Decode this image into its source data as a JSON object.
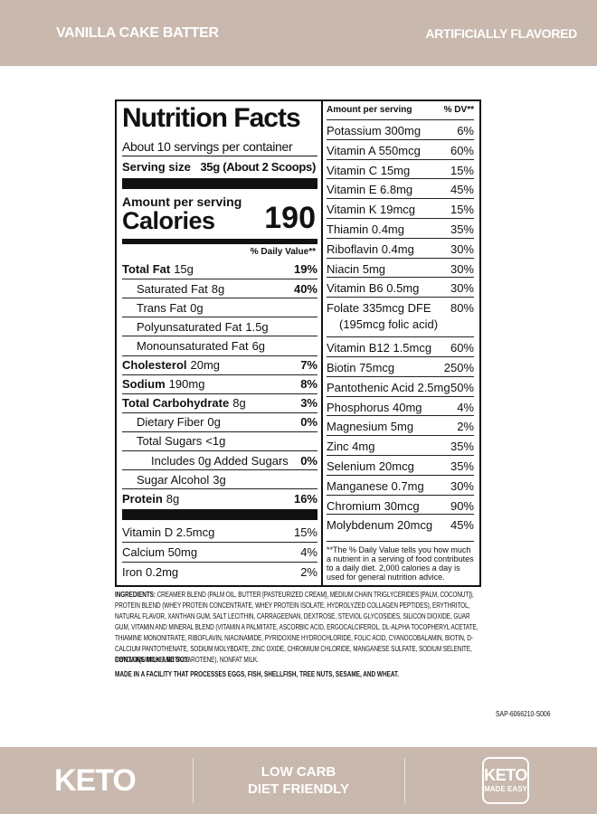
{
  "header": {
    "product_name": "VANILLA CAKE BATTER",
    "flavor_note": "ARTIFICIALLY FLAVORED"
  },
  "nutrition_facts": {
    "title": "Nutrition Facts",
    "servings": "About 10 servings per container",
    "serving_size_label": "Serving size",
    "serving_size_value": "35g (About 2 Scoops)",
    "amount_per_serving": "Amount per serving",
    "calories_label": "Calories",
    "calories_value": "190",
    "dv_header": "% Daily Value**",
    "nutrients": [
      {
        "name": "Total Fat",
        "amount": "15g",
        "dv": "19%",
        "level": 0
      },
      {
        "name": "Saturated Fat",
        "amount": "8g",
        "dv": "40%",
        "level": 1
      },
      {
        "name": "Trans Fat",
        "amount": "0g",
        "level": 1
      },
      {
        "name": "Polyunsaturated Fat",
        "amount": "1.5g",
        "level": 1
      },
      {
        "name": "Monounsaturated Fat",
        "amount": "6g",
        "level": 1
      },
      {
        "name": "Cholesterol",
        "amount": "20mg",
        "dv": "7%",
        "level": 0
      },
      {
        "name": "Sodium",
        "amount": "190mg",
        "dv": "8%",
        "level": 0
      },
      {
        "name": "Total Carbohydrate",
        "amount": "8g",
        "dv": "3%",
        "level": 0
      },
      {
        "name": "Dietary Fiber",
        "amount": "0g",
        "dv": "0%",
        "level": 1
      },
      {
        "name": "Total Sugars",
        "amount": "<1g",
        "level": 1
      },
      {
        "name": "Includes 0g Added Sugars",
        "dv": "0%",
        "level": 2
      },
      {
        "name": "Sugar Alcohol",
        "amount": "3g",
        "level": 1
      },
      {
        "name": "Protein",
        "amount": "8g",
        "dv": "16%",
        "level": 0
      }
    ],
    "vitamins": [
      {
        "name": "Vitamin D 2.5mcg",
        "dv": "15%"
      },
      {
        "name": "Calcium 50mg",
        "dv": "4%"
      },
      {
        "name": "Iron 0.2mg",
        "dv": "2%"
      }
    ],
    "right_header": {
      "amount": "Amount per serving",
      "dv": "% DV**"
    },
    "right_rows": [
      {
        "name": "Potassium 300mg",
        "dv": "6%"
      },
      {
        "name": "Vitamin A 550mcg",
        "dv": "60%"
      },
      {
        "name": "Vitamin C 15mg",
        "dv": "15%"
      },
      {
        "name": "Vitamin E 6.8mg",
        "dv": "45%"
      },
      {
        "name": "Vitamin K 19mcg",
        "dv": "15%"
      },
      {
        "name": "Thiamin 0.4mg",
        "dv": "35%"
      },
      {
        "name": "Riboflavin 0.4mg",
        "dv": "30%"
      },
      {
        "name": "Niacin 5mg",
        "dv": "30%"
      },
      {
        "name": "Vitamin B6 0.5mg",
        "dv": "30%"
      },
      {
        "name": "Folate 335mcg DFE",
        "sub": "(195mcg folic acid)",
        "dv": "80%"
      },
      {
        "name": "Vitamin B12 1.5mcg",
        "dv": "60%"
      },
      {
        "name": "Biotin 75mcg",
        "dv": "250%"
      },
      {
        "name": "Pantothenic Acid 2.5mg",
        "dv": "50%"
      },
      {
        "name": "Phosphorus 40mg",
        "dv": "4%"
      },
      {
        "name": "Magnesium 5mg",
        "dv": "2%"
      },
      {
        "name": "Zinc 4mg",
        "dv": "35%"
      },
      {
        "name": "Selenium 20mcg",
        "dv": "35%"
      },
      {
        "name": "Manganese 0.7mg",
        "dv": "30%"
      },
      {
        "name": "Chromium 30mcg",
        "dv": "90%"
      },
      {
        "name": "Molybdenum 20mcg",
        "dv": "45%"
      }
    ],
    "footnote": "**The % Daily Value tells you how much a nutrient in a serving of food contributes to a daily diet. 2,000 calories a day is used for general nutrition advice."
  },
  "ingredients": {
    "label": "INGREDIENTS:",
    "text": "CREAMER BLEND (PALM OIL, BUTTER [PASTEURIZED CREAM], MEDIUM CHAIN TRIGLYCERIDES [PALM, COCONUT]), PROTEIN BLEND (WHEY PROTEIN CONCENTRATE, WHEY PROTEIN ISOLATE, HYDROLYZED COLLAGEN PEPTIDES), ERYTHRITOL, NATURAL FLAVOR, XANTHAN GUM, SALT LECITHIN, CARRAGEENAN, DEXTROSE, STEVIOL GLYCOSIDES, SILICON DIOXIDE, GUAR GUM, VITAMIN AND MINERAL BLEND (VITAMIN A PALMITATE, ASCORBIC ACID, ERGOCALCIFEROL, DL-ALPHA TOCOPHERYL ACETATE, THIAMINE MONONITRATE, RIBOFLAVIN, NIACINAMIDE, PYRIDOXINE HYDROCHLORIDE, FOLIC ACID, CYANOCOBALAMIN, BIOTIN, D-CALCIUM PANTOTHENATE, SODIUM MOLYBDATE, ZINC OXIDE, CHROMIUM CHLORIDE, MANGANESE SULFATE, SODIUM SELENITE, PHYLLOQUINONE, BETA-CAROTENE), NONFAT MILK.",
    "contains": "CONTAINS MILK AND SOY.",
    "facility": "MADE IN A FACILITY THAT PROCESSES EGGS, FISH, SHELLFISH, TREE NUTS, SESAME, AND WHEAT."
  },
  "code": "SAP-6066210-S006",
  "footer": {
    "keto": "KETO",
    "claim_line1": "LOW CARB",
    "claim_line2": "DIET FRIENDLY",
    "badge_title": "KETO",
    "badge_sub": "MADE EASY"
  }
}
